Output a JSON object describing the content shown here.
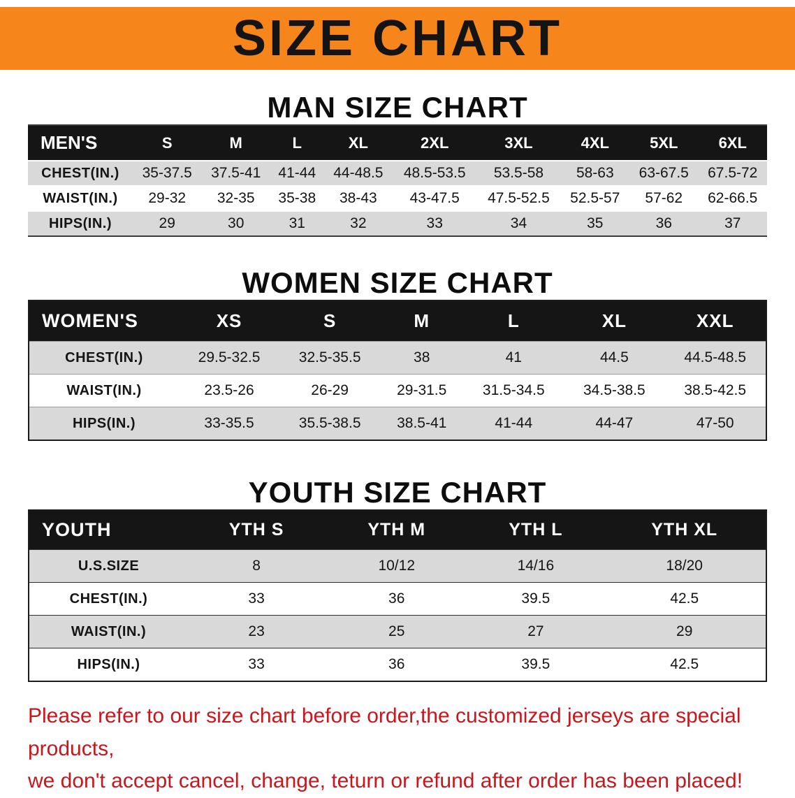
{
  "banner": {
    "title": "SIZE CHART",
    "bg_color": "#F6861C",
    "text_color": "#141414"
  },
  "sections": [
    {
      "id": "men",
      "heading": "MAN SIZE CHART",
      "table": {
        "header": [
          "MEN'S",
          "S",
          "M",
          "L",
          "XL",
          "2XL",
          "3XL",
          "4XL",
          "5XL",
          "6XL"
        ],
        "rows": [
          [
            "CHEST(IN.)",
            "35-37.5",
            "37.5-41",
            "41-44",
            "44-48.5",
            "48.5-53.5",
            "53.5-58",
            "58-63",
            "63-67.5",
            "67.5-72"
          ],
          [
            "WAIST(IN.)",
            "29-32",
            "32-35",
            "35-38",
            "38-43",
            "43-47.5",
            "47.5-52.5",
            "52.5-57",
            "57-62",
            "62-66.5"
          ],
          [
            "HIPS(IN.)",
            "29",
            "30",
            "31",
            "32",
            "33",
            "34",
            "35",
            "36",
            "37"
          ]
        ]
      }
    },
    {
      "id": "women",
      "heading": "WOMEN SIZE CHART",
      "table": {
        "header": [
          "WOMEN'S",
          "XS",
          "S",
          "M",
          "L",
          "XL",
          "XXL"
        ],
        "rows": [
          [
            "CHEST(IN.)",
            "29.5-32.5",
            "32.5-35.5",
            "38",
            "41",
            "44.5",
            "44.5-48.5"
          ],
          [
            "WAIST(IN.)",
            "23.5-26",
            "26-29",
            "29-31.5",
            "31.5-34.5",
            "34.5-38.5",
            "38.5-42.5"
          ],
          [
            "HIPS(IN.)",
            "33-35.5",
            "35.5-38.5",
            "38.5-41",
            "41-44",
            "44-47",
            "47-50"
          ]
        ]
      }
    },
    {
      "id": "youth",
      "heading": "YOUTH SIZE CHART",
      "table": {
        "header": [
          "YOUTH",
          "YTH S",
          "YTH M",
          "YTH L",
          "YTH XL"
        ],
        "rows": [
          [
            "U.S.SIZE",
            "8",
            "10/12",
            "14/16",
            "18/20"
          ],
          [
            "CHEST(IN.)",
            "33",
            "36",
            "39.5",
            "42.5"
          ],
          [
            "WAIST(IN.)",
            "23",
            "25",
            "27",
            "29"
          ],
          [
            "HIPS(IN.)",
            "33",
            "36",
            "39.5",
            "42.5"
          ]
        ]
      }
    }
  ],
  "disclaimer": {
    "lines": [
      "Please refer to our size chart before order,the customized jerseys are special products,",
      "we don't accept cancel, change, teturn or refund after order has been placed!"
    ],
    "color": "#C9161C"
  },
  "colors": {
    "stripe_gray": "#D9D9D9",
    "table_header_bg": "#151515"
  }
}
